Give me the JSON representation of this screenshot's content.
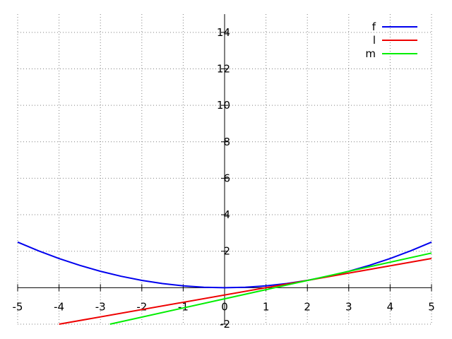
{
  "chart_data": {
    "type": "line",
    "title": "",
    "xlabel": "",
    "ylabel": "",
    "xlim": [
      -5,
      5
    ],
    "ylim": [
      -2,
      15
    ],
    "x_ticks": [
      -5,
      -4,
      -3,
      -2,
      -1,
      0,
      1,
      2,
      3,
      4,
      5
    ],
    "y_ticks": [
      -2,
      0,
      2,
      4,
      6,
      8,
      10,
      12,
      14
    ],
    "x_tick_labels": [
      "-5",
      "-4",
      "-3",
      "-2",
      "-1",
      "0",
      "1",
      "2",
      "3",
      "4",
      "5"
    ],
    "y_tick_labels": [
      "-2",
      "0",
      "2",
      "4",
      "6",
      "8",
      "10",
      "12",
      "14"
    ],
    "grid": true,
    "legend_position": "top-right",
    "series": [
      {
        "name": "f",
        "color": "#0000ee",
        "x": [
          -5,
          -4.5,
          -4,
          -3.5,
          -3,
          -2.5,
          -2,
          -1.5,
          -1,
          -0.5,
          0,
          0.5,
          1,
          1.5,
          2,
          2.5,
          3,
          3.5,
          4,
          4.5,
          5
        ],
        "y": [
          2.5,
          2.025,
          1.6,
          1.225,
          0.9,
          0.625,
          0.4,
          0.225,
          0.1,
          0.025,
          0,
          0.025,
          0.1,
          0.225,
          0.4,
          0.625,
          0.9,
          1.225,
          1.6,
          2.025,
          2.5
        ]
      },
      {
        "name": "l",
        "color": "#ee0000",
        "x": [
          -4,
          5
        ],
        "y": [
          -2,
          1.6
        ]
      },
      {
        "name": "m",
        "color": "#00ee00",
        "x": [
          -2.77,
          5
        ],
        "y": [
          -2,
          1.9
        ]
      }
    ]
  }
}
